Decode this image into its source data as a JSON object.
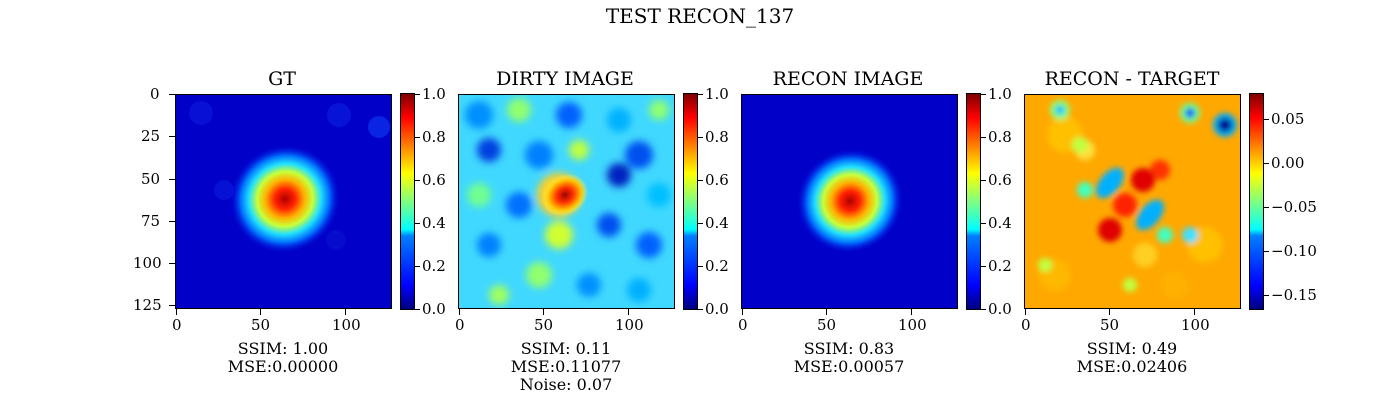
{
  "figure": {
    "title": "TEST RECON_137"
  },
  "chart_data": [
    {
      "type": "heatmap",
      "title": "GT",
      "xticks": [
        0,
        50,
        100
      ],
      "yticks": [
        0,
        25,
        50,
        75,
        100,
        125
      ],
      "xlim": [
        0,
        127
      ],
      "ylim": [
        127,
        0
      ],
      "colorbar": {
        "min": 0.0,
        "max": 1.0,
        "ticks": [
          "0.0",
          "0.2",
          "0.4",
          "0.6",
          "0.8",
          "1.0"
        ]
      },
      "colormap": "jet",
      "metrics": [
        "SSIM: 1.00",
        "MSE:0.00000"
      ]
    },
    {
      "type": "heatmap",
      "title": "DIRTY IMAGE",
      "xticks": [
        0,
        50,
        100
      ],
      "xlim": [
        0,
        127
      ],
      "colorbar": {
        "min": 0.0,
        "max": 1.0,
        "ticks": [
          "0.0",
          "0.2",
          "0.4",
          "0.6",
          "0.8",
          "1.0"
        ]
      },
      "colormap": "jet",
      "metrics": [
        "SSIM: 0.11",
        "MSE:0.11077",
        "Noise: 0.07"
      ]
    },
    {
      "type": "heatmap",
      "title": "RECON IMAGE",
      "xticks": [
        0,
        50,
        100
      ],
      "xlim": [
        0,
        127
      ],
      "colorbar": {
        "min": 0.0,
        "max": 1.0,
        "ticks": [
          "0.0",
          "0.2",
          "0.4",
          "0.6",
          "0.8",
          "1.0"
        ]
      },
      "colormap": "jet",
      "metrics": [
        "SSIM: 0.83",
        "MSE:0.00057"
      ]
    },
    {
      "type": "heatmap",
      "title": "RECON - TARGET",
      "xticks": [
        0,
        50,
        100
      ],
      "xlim": [
        0,
        127
      ],
      "colorbar": {
        "min": -0.17,
        "max": 0.078,
        "ticks": [
          "0.05",
          "0.00",
          "−0.05",
          "−0.10",
          "−0.15"
        ],
        "tick_values": [
          0.05,
          0.0,
          -0.05,
          -0.1,
          -0.15
        ]
      },
      "colormap": "jet",
      "metrics": [
        "SSIM: 0.49",
        "MSE:0.02406"
      ]
    }
  ]
}
